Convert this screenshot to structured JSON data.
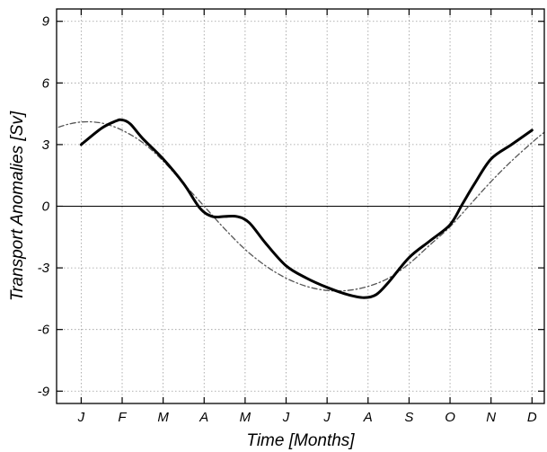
{
  "chart_data": {
    "type": "line",
    "xlabel": "Time [Months]",
    "ylabel": "Transport Anomalies [Sv]",
    "xticks": [
      "J",
      "F",
      "M",
      "A",
      "M",
      "J",
      "J",
      "A",
      "S",
      "O",
      "N",
      "D"
    ],
    "yticks": [
      -9,
      -6,
      -3,
      0,
      3,
      6,
      9
    ],
    "ylim": [
      -9.6,
      9.6
    ],
    "xlim": [
      0.4,
      12.3
    ],
    "grid": true,
    "series": [
      {
        "style": "solid-bold",
        "color": "#000000",
        "x": [
          1,
          1.5,
          1.85,
          2,
          2.2,
          2.5,
          3,
          3.5,
          3.9,
          4.2,
          4.5,
          4.8,
          5.1,
          5.5,
          6,
          6.5,
          7,
          7.5,
          7.9,
          8.2,
          8.5,
          9,
          9.5,
          10,
          10.3,
          10.6,
          11,
          11.5,
          12
        ],
        "y": [
          3.0,
          3.8,
          4.15,
          4.2,
          4.0,
          3.3,
          2.3,
          1.1,
          -0.1,
          -0.5,
          -0.5,
          -0.5,
          -0.8,
          -1.8,
          -2.9,
          -3.5,
          -3.95,
          -4.3,
          -4.45,
          -4.3,
          -3.7,
          -2.5,
          -1.7,
          -0.9,
          0.1,
          1.1,
          2.3,
          3.0,
          3.7
        ]
      },
      {
        "style": "dash-dot",
        "color": "#555555",
        "x": [
          0.45,
          0.7,
          1,
          1.3,
          1.6,
          2,
          2.5,
          3,
          3.5,
          4,
          4.5,
          5,
          5.5,
          6,
          6.5,
          7,
          7.5,
          8,
          8.5,
          9,
          9.5,
          10,
          10.5,
          11,
          11.5,
          12,
          12.3
        ],
        "y": [
          3.85,
          4.0,
          4.1,
          4.1,
          4.0,
          3.7,
          3.1,
          2.2,
          1.1,
          0.0,
          -1.1,
          -2.1,
          -2.9,
          -3.5,
          -3.9,
          -4.1,
          -4.1,
          -3.9,
          -3.5,
          -2.8,
          -1.9,
          -1.0,
          0.1,
          1.2,
          2.2,
          3.1,
          3.6
        ]
      }
    ]
  }
}
